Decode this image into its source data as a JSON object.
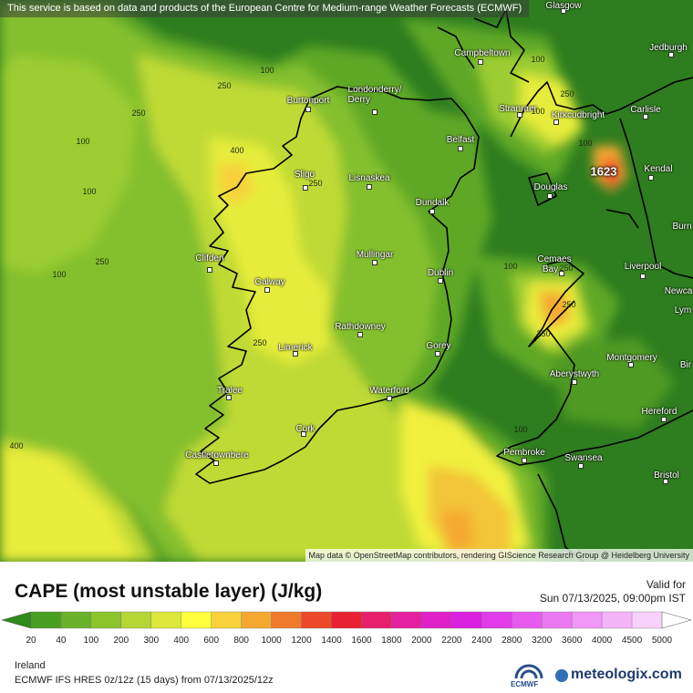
{
  "banner": "This service is based on data and products of the European Centre for Medium-range Weather Forecasts (ECMWF)",
  "credit": "Map data © OpenStreetMap contributors, rendering GIScience Research Group @ Heidelberg University",
  "title": "CAPE (most unstable layer) (J/kg)",
  "valid_label": "Valid for",
  "valid_time": "Sun 07/13/2025, 09:00pm IST",
  "region": "Ireland",
  "model": "ECMWF IFS HRES 0z/12z (15 days) from  07/13/2025/12z",
  "ecmwf_logo": "ECMWF",
  "brand": "meteologix.com",
  "max_value": "1623",
  "colors": {
    "map_base": "#2e7d1f",
    "scale": [
      "#2e8b1a",
      "#4a9f22",
      "#6ab22a",
      "#8cc42e",
      "#b5d634",
      "#dde83a",
      "#ffff3c",
      "#f8d23a",
      "#f5a830",
      "#f07a2c",
      "#ec4a2a",
      "#e82232",
      "#e6206a",
      "#e420a0",
      "#e020c8",
      "#dc20e0",
      "#e03ce8",
      "#e65aee",
      "#ec78f2",
      "#f096f6",
      "#f4b4f8",
      "#f8d2fb",
      "#ffffff"
    ]
  },
  "scale_ticks": [
    "20",
    "40",
    "100",
    "200",
    "300",
    "400",
    "600",
    "800",
    "1000",
    "1200",
    "1400",
    "1600",
    "1800",
    "2000",
    "2200",
    "2400",
    "2800",
    "3200",
    "3600",
    "4000",
    "4500",
    "5000"
  ],
  "cities": [
    {
      "name": "Glasgow"
    },
    {
      "name": "Jedburgh"
    },
    {
      "name": "Campbeltown"
    },
    {
      "name": "Burtonport"
    },
    {
      "name": "Londonderry/\nDerry"
    },
    {
      "name": "Stranraer"
    },
    {
      "name": "Kirkcudbright"
    },
    {
      "name": "Carlisle"
    },
    {
      "name": "Belfast"
    },
    {
      "name": "Kendal"
    },
    {
      "name": "Sligo"
    },
    {
      "name": "Lisnaskea"
    },
    {
      "name": "Douglas"
    },
    {
      "name": "Dundalk"
    },
    {
      "name": "Burn"
    },
    {
      "name": "Mullingar"
    },
    {
      "name": "Clifden"
    },
    {
      "name": "Cemaes\nBay"
    },
    {
      "name": "Liverpool"
    },
    {
      "name": "Dublin"
    },
    {
      "name": "Galway"
    },
    {
      "name": "Newca"
    },
    {
      "name": "Lym"
    },
    {
      "name": "Rathdowney"
    },
    {
      "name": "Limerick"
    },
    {
      "name": "Gorey"
    },
    {
      "name": "Montgomery"
    },
    {
      "name": "Bir"
    },
    {
      "name": "Aberystwyth"
    },
    {
      "name": "Tralee"
    },
    {
      "name": "Waterford"
    },
    {
      "name": "Hereford"
    },
    {
      "name": "Cork"
    },
    {
      "name": "Pembroke"
    },
    {
      "name": "Swansea"
    },
    {
      "name": "Castletownbere"
    },
    {
      "name": "Bristol"
    }
  ],
  "contour_labels": [
    "100",
    "250",
    "100",
    "250",
    "100",
    "400",
    "250",
    "100",
    "250",
    "100",
    "250",
    "250",
    "100",
    "250",
    "250",
    "250",
    "100",
    "400",
    "100",
    "100"
  ]
}
